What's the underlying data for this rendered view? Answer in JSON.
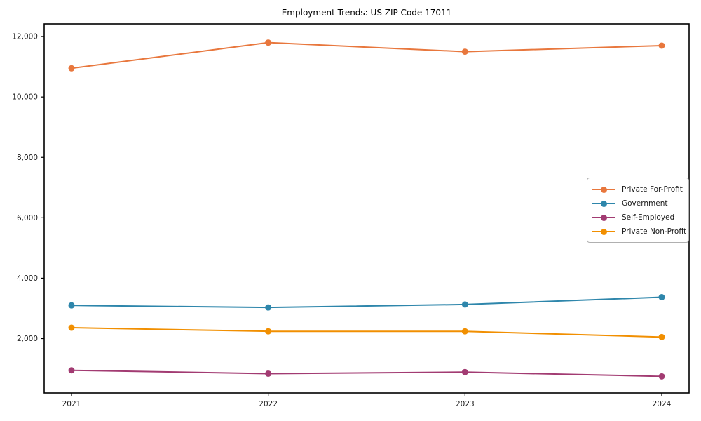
{
  "chart_data": {
    "type": "line",
    "title": "Employment Trends: US ZIP Code 17011",
    "xlabel": "",
    "ylabel": "",
    "grid": false,
    "legend_position": "right",
    "categories": [
      "2021",
      "2022",
      "2023",
      "2024"
    ],
    "series": [
      {
        "name": "Private For-Profit",
        "color": "#E8773D",
        "values": [
          10950,
          11800,
          11500,
          11700
        ]
      },
      {
        "name": "Government",
        "color": "#2E86AB",
        "values": [
          3100,
          3030,
          3130,
          3370
        ]
      },
      {
        "name": "Self-Employed",
        "color": "#A23B72",
        "values": [
          950,
          840,
          890,
          750
        ]
      },
      {
        "name": "Private Non-Profit",
        "color": "#F18F01",
        "values": [
          2360,
          2240,
          2240,
          2050
        ]
      }
    ],
    "ylim": [
      200,
      12420
    ],
    "y_ticks": [
      {
        "value": 2000,
        "label": "2,000"
      },
      {
        "value": 4000,
        "label": "4,000"
      },
      {
        "value": 6000,
        "label": "6,000"
      },
      {
        "value": 8000,
        "label": "8,000"
      },
      {
        "value": 10000,
        "label": "10,000"
      },
      {
        "value": 12000,
        "label": "12,000"
      }
    ]
  },
  "colors": {
    "frame": "#000000",
    "tick_label": "#1a1a1a",
    "legend_border": "#b0b0b0"
  }
}
